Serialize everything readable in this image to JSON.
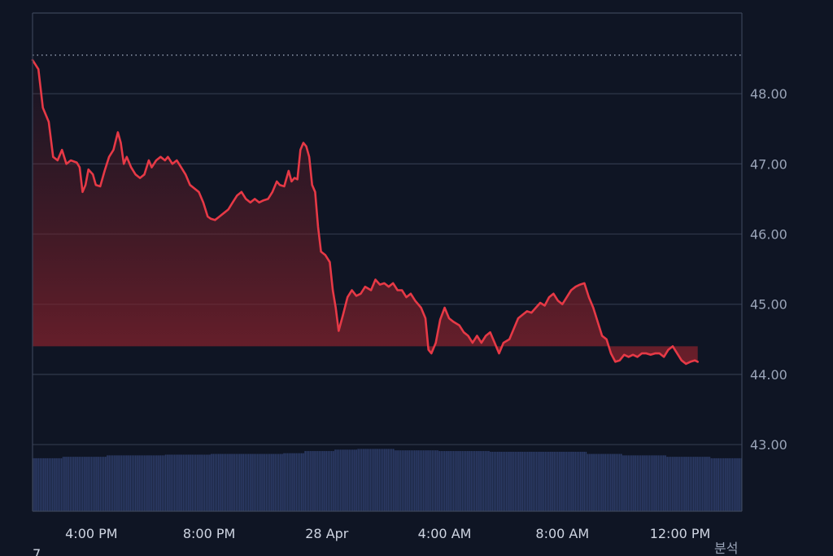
{
  "chart_data": {
    "type": "area",
    "title": "",
    "xlabel": "",
    "ylabel": "",
    "ylim": [
      42.05,
      49.15
    ],
    "xlim": [
      0,
      24.1
    ],
    "y_axis_position": "right",
    "grid": true,
    "y_ticks": [
      {
        "value": 43.0,
        "label": "43.00"
      },
      {
        "value": 44.0,
        "label": "44.00"
      },
      {
        "value": 45.0,
        "label": "45.00"
      },
      {
        "value": 46.0,
        "label": "46.00"
      },
      {
        "value": 47.0,
        "label": "47.00"
      },
      {
        "value": 48.0,
        "label": "48.00"
      }
    ],
    "x_ticks": [
      {
        "value": 2.0,
        "label": "4:00 PM"
      },
      {
        "value": 6.0,
        "label": "8:00 PM"
      },
      {
        "value": 10.0,
        "label": "28 Apr"
      },
      {
        "value": 14.0,
        "label": "4:00 AM"
      },
      {
        "value": 18.0,
        "label": "8:00 AM"
      },
      {
        "value": 22.0,
        "label": "12:00 PM"
      }
    ],
    "reference_line": {
      "value": 48.55,
      "style": "dotted"
    },
    "price_series": {
      "color": "#e63946",
      "points": [
        [
          0.0,
          48.48
        ],
        [
          0.2,
          48.35
        ],
        [
          0.35,
          47.8
        ],
        [
          0.55,
          47.6
        ],
        [
          0.7,
          47.1
        ],
        [
          0.85,
          47.05
        ],
        [
          1.0,
          47.2
        ],
        [
          1.15,
          47.0
        ],
        [
          1.3,
          47.05
        ],
        [
          1.5,
          47.02
        ],
        [
          1.6,
          46.95
        ],
        [
          1.7,
          46.6
        ],
        [
          1.8,
          46.7
        ],
        [
          1.9,
          46.92
        ],
        [
          2.05,
          46.85
        ],
        [
          2.15,
          46.7
        ],
        [
          2.3,
          46.68
        ],
        [
          2.45,
          46.9
        ],
        [
          2.6,
          47.1
        ],
        [
          2.75,
          47.2
        ],
        [
          2.9,
          47.45
        ],
        [
          3.0,
          47.3
        ],
        [
          3.1,
          47.0
        ],
        [
          3.2,
          47.1
        ],
        [
          3.35,
          46.95
        ],
        [
          3.5,
          46.85
        ],
        [
          3.65,
          46.8
        ],
        [
          3.8,
          46.85
        ],
        [
          3.95,
          47.05
        ],
        [
          4.05,
          46.95
        ],
        [
          4.2,
          47.05
        ],
        [
          4.35,
          47.1
        ],
        [
          4.5,
          47.05
        ],
        [
          4.6,
          47.1
        ],
        [
          4.75,
          47.0
        ],
        [
          4.9,
          47.05
        ],
        [
          5.05,
          46.95
        ],
        [
          5.2,
          46.85
        ],
        [
          5.35,
          46.7
        ],
        [
          5.5,
          46.65
        ],
        [
          5.65,
          46.6
        ],
        [
          5.8,
          46.45
        ],
        [
          5.95,
          46.25
        ],
        [
          6.05,
          46.22
        ],
        [
          6.2,
          46.2
        ],
        [
          6.35,
          46.25
        ],
        [
          6.5,
          46.3
        ],
        [
          6.65,
          46.35
        ],
        [
          6.8,
          46.45
        ],
        [
          6.95,
          46.55
        ],
        [
          7.1,
          46.6
        ],
        [
          7.25,
          46.5
        ],
        [
          7.4,
          46.45
        ],
        [
          7.55,
          46.5
        ],
        [
          7.7,
          46.45
        ],
        [
          7.85,
          46.48
        ],
        [
          8.0,
          46.5
        ],
        [
          8.15,
          46.6
        ],
        [
          8.3,
          46.75
        ],
        [
          8.4,
          46.7
        ],
        [
          8.55,
          46.68
        ],
        [
          8.7,
          46.9
        ],
        [
          8.8,
          46.75
        ],
        [
          8.9,
          46.8
        ],
        [
          9.0,
          46.78
        ],
        [
          9.1,
          47.2
        ],
        [
          9.2,
          47.3
        ],
        [
          9.3,
          47.25
        ],
        [
          9.4,
          47.1
        ],
        [
          9.5,
          46.7
        ],
        [
          9.6,
          46.6
        ],
        [
          9.7,
          46.1
        ],
        [
          9.8,
          45.75
        ],
        [
          9.95,
          45.7
        ],
        [
          10.1,
          45.6
        ],
        [
          10.2,
          45.2
        ],
        [
          10.3,
          44.95
        ],
        [
          10.4,
          44.62
        ],
        [
          10.55,
          44.85
        ],
        [
          10.7,
          45.1
        ],
        [
          10.85,
          45.2
        ],
        [
          11.0,
          45.12
        ],
        [
          11.15,
          45.15
        ],
        [
          11.3,
          45.25
        ],
        [
          11.5,
          45.2
        ],
        [
          11.65,
          45.35
        ],
        [
          11.8,
          45.28
        ],
        [
          11.95,
          45.3
        ],
        [
          12.1,
          45.25
        ],
        [
          12.25,
          45.3
        ],
        [
          12.4,
          45.2
        ],
        [
          12.55,
          45.2
        ],
        [
          12.7,
          45.1
        ],
        [
          12.85,
          45.15
        ],
        [
          13.0,
          45.05
        ],
        [
          13.2,
          44.95
        ],
        [
          13.35,
          44.8
        ],
        [
          13.45,
          44.35
        ],
        [
          13.55,
          44.3
        ],
        [
          13.7,
          44.45
        ],
        [
          13.85,
          44.78
        ],
        [
          14.0,
          44.95
        ],
        [
          14.15,
          44.8
        ],
        [
          14.3,
          44.75
        ],
        [
          14.5,
          44.7
        ],
        [
          14.65,
          44.6
        ],
        [
          14.8,
          44.55
        ],
        [
          14.95,
          44.45
        ],
        [
          15.1,
          44.55
        ],
        [
          15.25,
          44.45
        ],
        [
          15.4,
          44.55
        ],
        [
          15.55,
          44.6
        ],
        [
          15.7,
          44.45
        ],
        [
          15.85,
          44.3
        ],
        [
          16.0,
          44.45
        ],
        [
          16.2,
          44.5
        ],
        [
          16.35,
          44.65
        ],
        [
          16.5,
          44.8
        ],
        [
          16.65,
          44.85
        ],
        [
          16.8,
          44.9
        ],
        [
          16.95,
          44.88
        ],
        [
          17.1,
          44.95
        ],
        [
          17.25,
          45.02
        ],
        [
          17.4,
          44.98
        ],
        [
          17.55,
          45.1
        ],
        [
          17.7,
          45.15
        ],
        [
          17.85,
          45.05
        ],
        [
          18.0,
          45.0
        ],
        [
          18.15,
          45.1
        ],
        [
          18.3,
          45.2
        ],
        [
          18.45,
          45.25
        ],
        [
          18.6,
          45.28
        ],
        [
          18.75,
          45.3
        ],
        [
          18.9,
          45.1
        ],
        [
          19.05,
          44.95
        ],
        [
          19.2,
          44.75
        ],
        [
          19.35,
          44.55
        ],
        [
          19.5,
          44.5
        ],
        [
          19.65,
          44.3
        ],
        [
          19.8,
          44.18
        ],
        [
          19.95,
          44.2
        ],
        [
          20.1,
          44.28
        ],
        [
          20.25,
          44.25
        ],
        [
          20.4,
          44.28
        ],
        [
          20.55,
          44.25
        ],
        [
          20.7,
          44.3
        ],
        [
          20.85,
          44.3
        ],
        [
          21.0,
          44.28
        ],
        [
          21.15,
          44.3
        ],
        [
          21.3,
          44.3
        ],
        [
          21.45,
          44.25
        ],
        [
          21.6,
          44.35
        ],
        [
          21.75,
          44.4
        ],
        [
          21.9,
          44.3
        ],
        [
          22.05,
          44.2
        ],
        [
          22.2,
          44.15
        ],
        [
          22.35,
          44.18
        ],
        [
          22.5,
          44.2
        ],
        [
          22.6,
          44.18
        ]
      ]
    },
    "volume_series": {
      "color": "#2c3b66",
      "segments": [
        {
          "from": 0.0,
          "to": 1.0,
          "level": 0.74
        },
        {
          "from": 1.0,
          "to": 2.5,
          "level": 0.76
        },
        {
          "from": 2.5,
          "to": 4.5,
          "level": 0.78
        },
        {
          "from": 4.5,
          "to": 6.0,
          "level": 0.79
        },
        {
          "from": 6.0,
          "to": 8.5,
          "level": 0.8
        },
        {
          "from": 8.5,
          "to": 9.2,
          "level": 0.81
        },
        {
          "from": 9.2,
          "to": 10.2,
          "level": 0.84
        },
        {
          "from": 10.2,
          "to": 11.0,
          "level": 0.86
        },
        {
          "from": 11.0,
          "to": 12.3,
          "level": 0.87
        },
        {
          "from": 12.3,
          "to": 13.8,
          "level": 0.85
        },
        {
          "from": 13.8,
          "to": 15.5,
          "level": 0.84
        },
        {
          "from": 15.5,
          "to": 18.8,
          "level": 0.83
        },
        {
          "from": 18.8,
          "to": 20.0,
          "level": 0.8
        },
        {
          "from": 20.0,
          "to": 21.5,
          "level": 0.78
        },
        {
          "from": 21.5,
          "to": 23.0,
          "level": 0.76
        },
        {
          "from": 23.0,
          "to": 24.1,
          "level": 0.74
        }
      ]
    }
  },
  "footer": {
    "left_fragment": "7",
    "right_fragment": "분석"
  }
}
